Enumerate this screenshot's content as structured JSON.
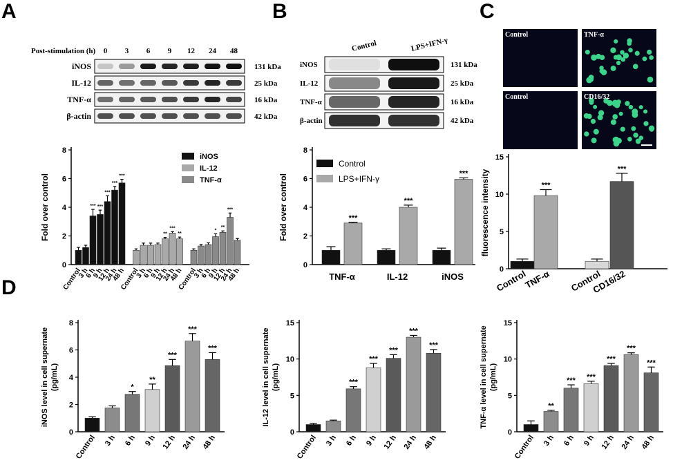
{
  "panel_letters": [
    "A",
    "B",
    "C",
    "D"
  ],
  "colors": {
    "black": "#111111",
    "gray_light": "#a9a9a9",
    "gray_mid": "#8a8a8a",
    "gray_dark": "#555555",
    "gray_lighter": "#d8d8d8",
    "fluor_green": "#3ad58a"
  },
  "panel_a_blot": {
    "header": "Post-stimulation (h)",
    "timepoints": [
      "0",
      "3",
      "6",
      "9",
      "12",
      "24",
      "48"
    ],
    "rows": [
      {
        "label": "iNOS",
        "kda": "131 kDa",
        "intensity": [
          0.15,
          0.35,
          0.95,
          0.9,
          0.92,
          0.98,
          1.0
        ]
      },
      {
        "label": "IL-12",
        "kda": "25 kDa",
        "intensity": [
          0.6,
          0.55,
          0.6,
          0.65,
          0.8,
          0.9,
          0.8
        ]
      },
      {
        "label": "TNF-α",
        "kda": "16 kDa",
        "intensity": [
          0.55,
          0.6,
          0.65,
          0.7,
          0.8,
          0.9,
          0.75
        ]
      },
      {
        "label": "β-actin",
        "kda": "42 kDa",
        "intensity": [
          0.7,
          0.7,
          0.7,
          0.7,
          0.7,
          0.7,
          0.7
        ]
      }
    ]
  },
  "panel_b_blot": {
    "conditions": [
      "Control",
      "LPS+IFN-γ"
    ],
    "rows": [
      {
        "label": "iNOS",
        "kda": "131 kDa",
        "intensity": [
          0.05,
          1.0
        ]
      },
      {
        "label": "IL-12",
        "kda": "25 kDa",
        "intensity": [
          0.45,
          0.95
        ]
      },
      {
        "label": "TNF-α",
        "kda": "16 kDa",
        "intensity": [
          0.6,
          0.9
        ]
      },
      {
        "label": "β-actin",
        "kda": "42 kDa",
        "intensity": [
          0.85,
          0.85
        ]
      }
    ]
  },
  "panel_c_images": [
    {
      "label": "Control",
      "cells": 0
    },
    {
      "label": "TNF-α",
      "cells": 28
    },
    {
      "label": "Control",
      "cells": 0
    },
    {
      "label": "CD16/32",
      "cells": 40
    }
  ],
  "chart_data": [
    {
      "id": "A-bar",
      "type": "bar",
      "ylabel": "Fold over control",
      "ylim": [
        0,
        8
      ],
      "yticks": [
        0,
        2,
        4,
        6,
        8
      ],
      "legend": [
        "iNOS",
        "IL-12",
        "TNF-α"
      ],
      "legend_placement": "top-right",
      "categories": [
        "Control",
        "3 h",
        "6 h",
        "9 h",
        "12 h",
        "24 h",
        "48 h"
      ],
      "series": [
        {
          "name": "iNOS",
          "values": [
            1.0,
            1.2,
            3.4,
            3.5,
            4.4,
            5.2,
            5.7
          ],
          "errors": [
            0.2,
            0.15,
            0.45,
            0.3,
            0.4,
            0.25,
            0.25
          ],
          "sig": [
            "",
            "",
            "***",
            "***",
            "***",
            "***",
            "***"
          ]
        },
        {
          "name": "IL-12",
          "values": [
            1.0,
            1.35,
            1.35,
            1.4,
            1.8,
            2.2,
            1.8
          ],
          "errors": [
            0.1,
            0.15,
            0.15,
            0.1,
            0.1,
            0.1,
            0.12
          ],
          "sig": [
            "",
            "",
            "",
            "",
            "**",
            "***",
            "**"
          ]
        },
        {
          "name": "TNF-α",
          "values": [
            1.0,
            1.3,
            1.4,
            1.95,
            2.25,
            3.3,
            1.7
          ],
          "errors": [
            0.1,
            0.1,
            0.12,
            0.2,
            0.1,
            0.3,
            0.12
          ],
          "sig": [
            "",
            "",
            "",
            "*",
            "**",
            "***",
            ""
          ]
        }
      ]
    },
    {
      "id": "B-bar",
      "type": "bar",
      "ylabel": "Fold over control",
      "ylim": [
        0,
        8
      ],
      "yticks": [
        0,
        2,
        4,
        6,
        8
      ],
      "legend": [
        "Control",
        "LPS+IFN-γ"
      ],
      "legend_placement": "top-left",
      "categories": [
        "TNF-α",
        "IL-12",
        "iNOS"
      ],
      "series": [
        {
          "name": "Control",
          "values": [
            1.0,
            1.0,
            1.0
          ],
          "errors": [
            0.25,
            0.1,
            0.15
          ],
          "sig": [
            "",
            "",
            ""
          ]
        },
        {
          "name": "LPS+IFN-γ",
          "values": [
            2.9,
            4.0,
            5.95
          ],
          "errors": [
            0.05,
            0.15,
            0.1
          ],
          "sig": [
            "***",
            "***",
            "***"
          ]
        }
      ]
    },
    {
      "id": "C-bar",
      "type": "bar",
      "ylabel": "fluorescence intensity",
      "ylim": [
        0,
        15
      ],
      "yticks": [
        0,
        5,
        10,
        15
      ],
      "categories": [
        "Control",
        "TNF-α",
        "Control",
        "CD16/32"
      ],
      "values": [
        1.0,
        9.8,
        1.0,
        11.7
      ],
      "errors": [
        0.3,
        0.8,
        0.3,
        1.1
      ],
      "sig": [
        "",
        "***",
        "",
        "***"
      ]
    },
    {
      "id": "D1-bar",
      "type": "bar",
      "ylabel_line1": "iNOS level in cell supernate",
      "ylabel_line2": "(pg/mL)",
      "ylim": [
        0,
        8
      ],
      "yticks": [
        0,
        2,
        4,
        6,
        8
      ],
      "categories": [
        "Control",
        "3 h",
        "6 h",
        "9 h",
        "12 h",
        "24 h",
        "48 h"
      ],
      "values": [
        1.0,
        1.75,
        2.75,
        3.1,
        4.85,
        6.65,
        5.3
      ],
      "errors": [
        0.1,
        0.15,
        0.2,
        0.4,
        0.45,
        0.55,
        0.5
      ],
      "sig": [
        "",
        "",
        "*",
        "**",
        "***",
        "***",
        "***"
      ]
    },
    {
      "id": "D2-bar",
      "type": "bar",
      "ylabel_line1": "IL-12 level in cell supernate",
      "ylabel_line2": "(pg/mL)",
      "ylim": [
        0,
        15
      ],
      "yticks": [
        0,
        5,
        10,
        15
      ],
      "categories": [
        "Control",
        "3 h",
        "6 h",
        "9 h",
        "12 h",
        "24 h",
        "48 h"
      ],
      "values": [
        1.0,
        1.5,
        5.9,
        8.8,
        10.1,
        13.0,
        10.8
      ],
      "errors": [
        0.15,
        0.1,
        0.3,
        0.6,
        0.5,
        0.25,
        0.5
      ],
      "sig": [
        "",
        "",
        "***",
        "***",
        "***",
        "***",
        "***"
      ]
    },
    {
      "id": "D3-bar",
      "type": "bar",
      "ylabel_line1": "TNF-α level in cell supernate",
      "ylabel_line2": "(pg/mL)",
      "ylim": [
        0,
        15
      ],
      "yticks": [
        0,
        5,
        10,
        15
      ],
      "categories": [
        "Control",
        "3 h",
        "6 h",
        "9 h",
        "12 h",
        "24 h",
        "48 h"
      ],
      "values": [
        1.0,
        2.8,
        6.0,
        6.6,
        9.1,
        10.6,
        8.1
      ],
      "errors": [
        0.5,
        0.15,
        0.45,
        0.35,
        0.3,
        0.25,
        0.8
      ],
      "sig": [
        "",
        "**",
        "***",
        "***",
        "***",
        "***",
        "***"
      ]
    }
  ]
}
